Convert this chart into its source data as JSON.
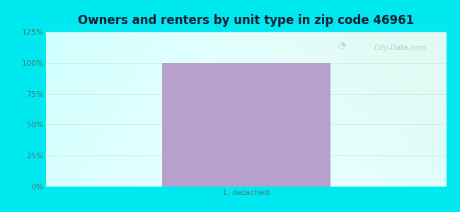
{
  "title": "Owners and renters by unit type in zip code 46961",
  "categories": [
    "1, detached"
  ],
  "values": [
    100
  ],
  "bar_color": "#b8a0cc",
  "ylim": [
    0,
    125
  ],
  "yticks": [
    0,
    25,
    50,
    75,
    100,
    125
  ],
  "ytick_labels": [
    "0%",
    "25%",
    "50%",
    "75%",
    "100%",
    "125%"
  ],
  "title_fontsize": 12,
  "tick_label_fontsize": 8,
  "bg_outer_color": "#00e8f0",
  "bg_left_color": "#aaf0e0",
  "bg_center_color": "#e8f8ec",
  "bg_right_color": "#e0f8f0",
  "watermark_text": "City-Data.com",
  "watermark_color": "#a8c4b8",
  "grid_color": "#d0e8d0",
  "axis_label_color": "#4a7a6a",
  "title_color": "#1a1a2e"
}
